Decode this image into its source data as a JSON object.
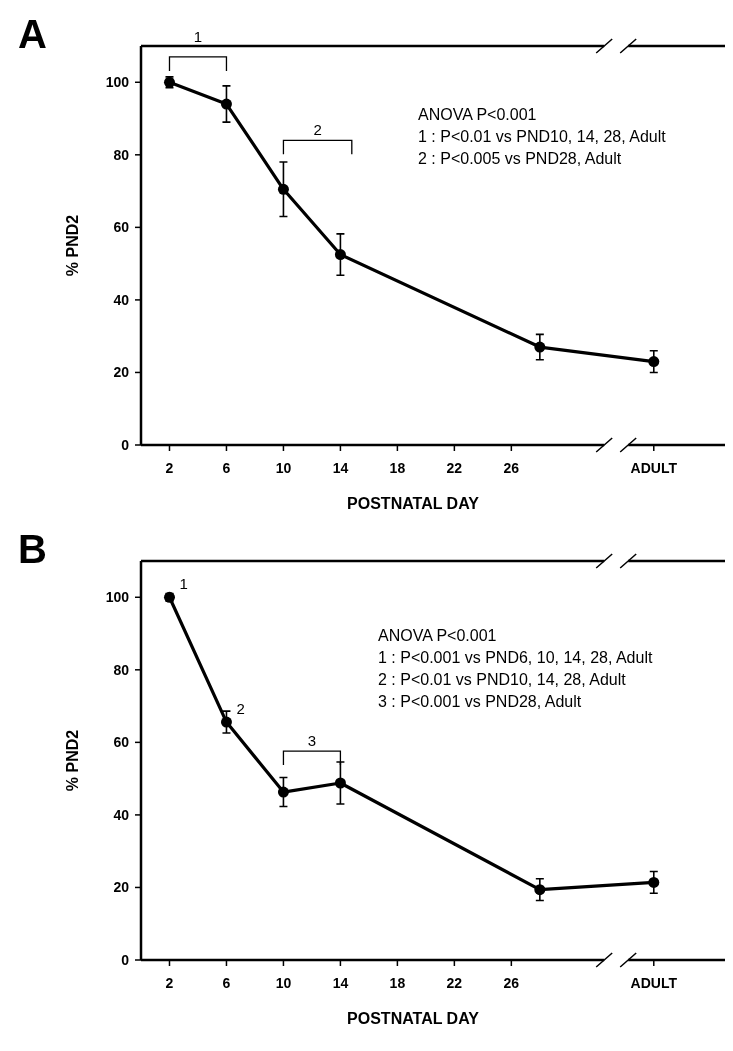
{
  "chart_data": [
    {
      "type": "line",
      "title": "A",
      "xlabel": "POSTNATAL DAY",
      "ylabel": "% PND2",
      "x": [
        2,
        6,
        10,
        14,
        28,
        36
      ],
      "series": [
        {
          "color": "#000000",
          "values": [
            100,
            94,
            70.5,
            52.5,
            27,
            23
          ],
          "errors": [
            1.5,
            5,
            7.5,
            5.7,
            3.5,
            3
          ]
        }
      ],
      "xlim": [
        0,
        41
      ],
      "xticks": [
        2,
        6,
        10,
        14,
        18,
        22,
        26,
        {
          "value": 36,
          "label": "ADULT"
        }
      ],
      "ylim": [
        0,
        110
      ],
      "yticks": [
        0,
        20,
        40,
        60,
        80,
        100
      ],
      "marker": "circle",
      "line_style": "solid",
      "grid": false,
      "annotations": [
        "1",
        "2",
        "ANOVA  P<0.001",
        "1 : P<0.01 vs PND10, 14, 28, Adult",
        "2 : P<0.005 vs PND28, Adult"
      ]
    },
    {
      "type": "line",
      "title": "B",
      "xlabel": "POSTNATAL DAY",
      "ylabel": "% PND2",
      "x": [
        2,
        6,
        10,
        14,
        28,
        36
      ],
      "series": [
        {
          "color": "#000000",
          "values": [
            100,
            65.6,
            46.3,
            48.8,
            19.4,
            21.4
          ],
          "errors": [
            1,
            3,
            4,
            5.8,
            3,
            3
          ]
        }
      ],
      "xlim": [
        0,
        41
      ],
      "xticks": [
        2,
        6,
        10,
        14,
        18,
        22,
        26,
        {
          "value": 36,
          "label": "ADULT"
        }
      ],
      "ylim": [
        0,
        110
      ],
      "yticks": [
        0,
        20,
        40,
        60,
        80,
        100
      ],
      "marker": "circle",
      "line_style": "solid",
      "grid": false,
      "annotations": [
        {
          "text": "1",
          "x": 2,
          "y": 100
        },
        {
          "text": "2",
          "x": 6,
          "y": 65.6
        },
        "3",
        "ANOVA  P<0.001",
        "1 : P<0.001 vs PND6, 10, 14, 28, Adult",
        "2 : P<0.01 vs PND10, 14, 28, Adult",
        "3 : P<0.001 vs PND28, Adult"
      ]
    }
  ]
}
